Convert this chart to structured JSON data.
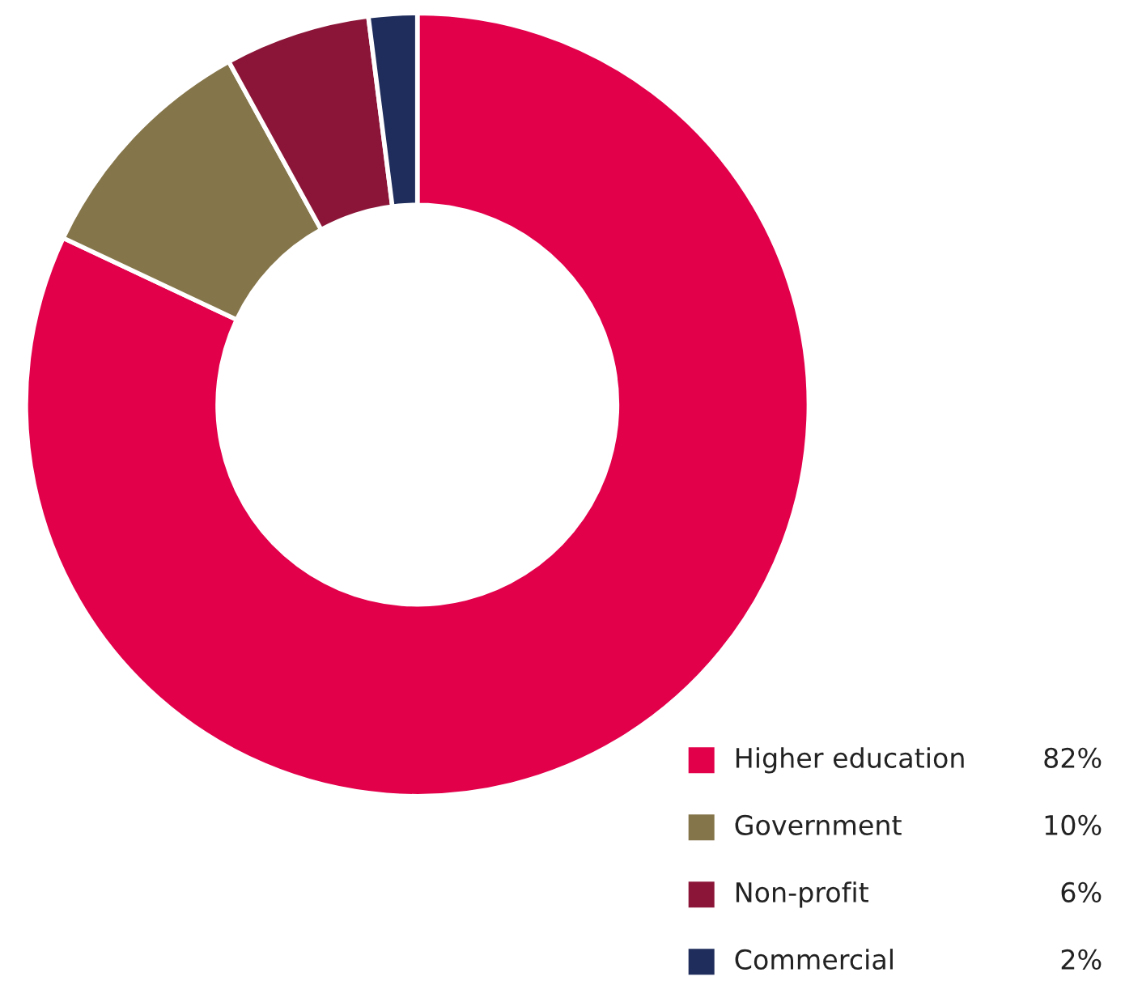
{
  "chart_data": {
    "type": "donut",
    "categories": [
      "Higher education",
      "Government",
      "Non-profit",
      "Commercial"
    ],
    "values": [
      82,
      10,
      6,
      2
    ],
    "value_labels": [
      "82%",
      "10%",
      "6%",
      "2%"
    ],
    "colors": [
      "#e2004b",
      "#85754a",
      "#8b1538",
      "#1f2d5c"
    ],
    "legend": "bottom right"
  }
}
